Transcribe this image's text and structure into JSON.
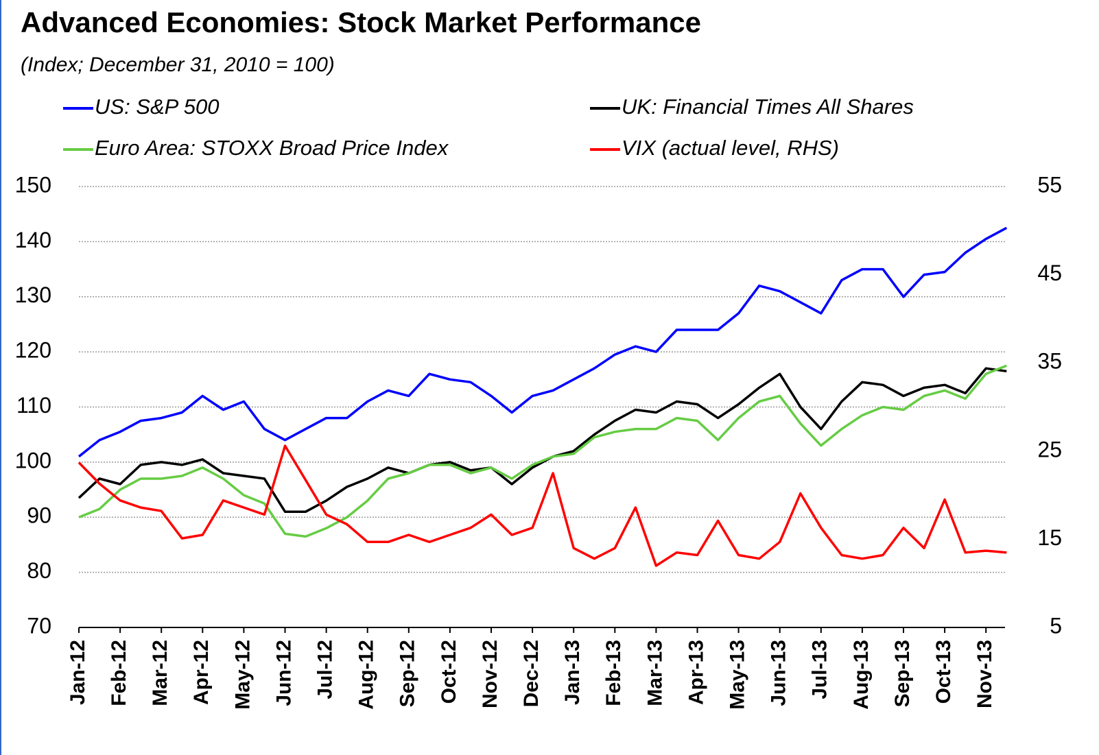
{
  "chart_data": {
    "type": "line",
    "title": "Advanced Economies: Stock Market Performance",
    "subtitle": "(Index; December 31, 2010 = 100)",
    "categories": [
      "Jan-12",
      null,
      "Feb-12",
      null,
      "Mar-12",
      null,
      "Apr-12",
      null,
      "May-12",
      null,
      "Jun-12",
      null,
      "Jul-12",
      null,
      "Aug-12",
      null,
      "Sep-12",
      null,
      "Oct-12",
      null,
      "Nov-12",
      null,
      "Dec-12",
      null,
      "Jan-13",
      null,
      "Feb-13",
      null,
      "Mar-13",
      null,
      "Apr-13",
      null,
      "May-13",
      null,
      "Jun-13",
      null,
      "Jul-13",
      null,
      "Aug-13",
      null,
      "Sep-13",
      null,
      "Oct-13",
      null,
      "Nov-13",
      null
    ],
    "series": [
      {
        "name": "US: S&P 500",
        "color": "#0000ff",
        "values": [
          101,
          104,
          105.5,
          107.5,
          108,
          109,
          112,
          109.5,
          111,
          106,
          104,
          106,
          108,
          108,
          111,
          113,
          112,
          116,
          115,
          114.5,
          112,
          109,
          112,
          113,
          115,
          117,
          119.5,
          121,
          120,
          124,
          124,
          124,
          127,
          132,
          131,
          129,
          127,
          133,
          135,
          135,
          130,
          134,
          134.5,
          138,
          140.5,
          142.5
        ]
      },
      {
        "name": "UK: Financial Times All Shares",
        "color": "#000000",
        "values": [
          93.5,
          97,
          96,
          99.5,
          100,
          99.5,
          100.5,
          98,
          97.5,
          97,
          91,
          91,
          93,
          95.5,
          97,
          99,
          98,
          99.5,
          100,
          98.5,
          99,
          96,
          99,
          101,
          102,
          105,
          107.5,
          109.5,
          109,
          111,
          110.5,
          108,
          110.5,
          113.5,
          116,
          110,
          106,
          111,
          114.5,
          114,
          112,
          113.5,
          114,
          112.5,
          117,
          116.5
        ]
      },
      {
        "name": "Euro Area: STOXX Broad Price Index",
        "color": "#66cc44",
        "values": [
          90,
          91.5,
          95,
          97,
          97,
          97.5,
          99,
          97,
          94,
          92.5,
          87,
          86.5,
          88,
          90,
          93,
          97,
          98,
          99.5,
          99.5,
          98,
          99,
          97,
          99.5,
          101,
          101.5,
          104.5,
          105.5,
          106,
          106,
          108,
          107.5,
          104,
          108,
          111,
          112,
          107,
          103,
          106,
          108.5,
          110,
          109.5,
          112,
          113,
          111.5,
          116,
          117.5
        ]
      },
      {
        "name": "VIX (actual level, RHS)",
        "color": "#ff0000",
        "axis": "y2",
        "values": [
          23.7,
          21.3,
          19.4,
          18.6,
          18.2,
          15.1,
          15.5,
          19.4,
          18.6,
          17.8,
          25.6,
          21.7,
          17.8,
          16.7,
          14.7,
          14.7,
          15.5,
          14.7,
          15.5,
          16.3,
          17.8,
          15.5,
          16.3,
          22.5,
          14,
          12.8,
          14,
          18.6,
          12,
          13.5,
          13.2,
          17.1,
          13.2,
          12.8,
          14.7,
          20.2,
          16.3,
          13.2,
          12.8,
          13.2,
          16.3,
          14,
          19.5,
          13.5,
          13.7,
          13.5
        ]
      }
    ],
    "ylim": [
      70,
      150
    ],
    "yticks": [
      70,
      80,
      90,
      100,
      110,
      120,
      130,
      140,
      150
    ],
    "y2lim": [
      5,
      55
    ],
    "y2ticks": [
      5,
      15,
      25,
      35,
      45,
      55
    ],
    "grid": true
  }
}
